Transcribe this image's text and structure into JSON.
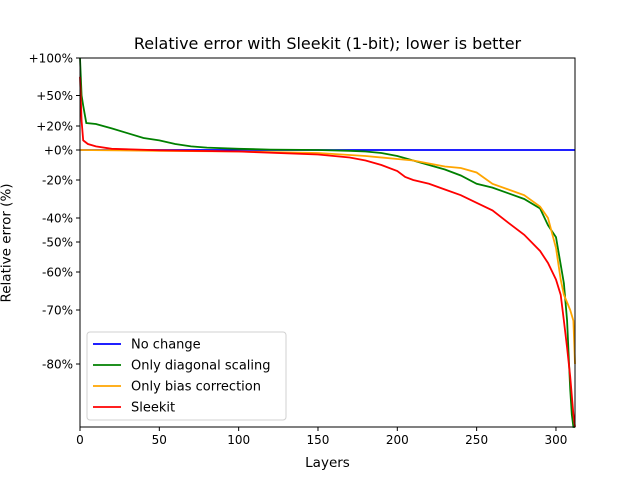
{
  "chart_data": {
    "type": "line",
    "title": "Relative error with Sleekit (1-bit); lower is better",
    "xlabel": "Layers",
    "ylabel": "Relative error (%)",
    "xlim": [
      0,
      312
    ],
    "x_ticks": [
      0,
      50,
      100,
      150,
      200,
      250,
      300
    ],
    "y_ticks": [
      {
        "value": 100,
        "label": "+100%"
      },
      {
        "value": 50,
        "label": "+50%"
      },
      {
        "value": 20,
        "label": "+20%"
      },
      {
        "value": 0,
        "label": "+0%"
      },
      {
        "value": -20,
        "label": "-20%"
      },
      {
        "value": -40,
        "label": "-40%"
      },
      {
        "value": -50,
        "label": "-50%"
      },
      {
        "value": -60,
        "label": "-60%"
      },
      {
        "value": -70,
        "label": "-70%"
      },
      {
        "value": -80,
        "label": "-80%"
      }
    ],
    "ylim": [
      -90,
      100
    ],
    "grid": false,
    "legend_position": "lower-left",
    "series": [
      {
        "name": "No change",
        "color": "#0000ff",
        "x": [
          0,
          312
        ],
        "y": [
          0,
          0
        ]
      },
      {
        "name": "Only diagonal scaling",
        "color": "#008000",
        "x": [
          0,
          1,
          2,
          4,
          10,
          20,
          30,
          40,
          50,
          60,
          70,
          80,
          100,
          120,
          150,
          170,
          180,
          190,
          200,
          210,
          220,
          230,
          240,
          250,
          260,
          270,
          280,
          290,
          295,
          300,
          305,
          307,
          309,
          310,
          311,
          312
        ],
        "y": [
          100,
          50,
          40,
          23,
          22,
          18,
          14,
          10,
          8,
          5,
          3,
          2,
          1,
          0.3,
          0,
          -0.5,
          -1,
          -2,
          -4,
          -7,
          -10,
          -13,
          -17,
          -22,
          -24,
          -27,
          -30,
          -35,
          -43,
          -48,
          -63,
          -72,
          -84,
          -88,
          -90,
          -90
        ]
      },
      {
        "name": "Only bias correction",
        "color": "#ffa500",
        "x": [
          0,
          50,
          100,
          150,
          180,
          200,
          210,
          220,
          230,
          240,
          250,
          260,
          270,
          280,
          290,
          295,
          300,
          303,
          305,
          307,
          309,
          310,
          311,
          312
        ],
        "y": [
          0,
          -0.5,
          -1,
          -2,
          -4,
          -6,
          -7,
          -9,
          -11,
          -12,
          -15,
          -22,
          -25,
          -28,
          -34,
          -40,
          -52,
          -62,
          -66,
          -68,
          -70,
          -71,
          -72,
          -80
        ]
      },
      {
        "name": "Sleekit",
        "color": "#ff0000",
        "x": [
          0,
          1,
          2,
          5,
          10,
          20,
          50,
          100,
          150,
          170,
          180,
          190,
          200,
          205,
          210,
          220,
          230,
          240,
          250,
          260,
          270,
          280,
          290,
          295,
          300,
          303,
          305,
          307,
          309,
          311,
          312
        ],
        "y": [
          75,
          25,
          8,
          5,
          3,
          1,
          -0.2,
          -1,
          -3,
          -5,
          -7,
          -10,
          -14,
          -18,
          -20,
          -22,
          -25,
          -28,
          -32,
          -36,
          -42,
          -47,
          -53,
          -57,
          -62,
          -66,
          -72,
          -77,
          -82,
          -88,
          -90
        ]
      }
    ]
  }
}
